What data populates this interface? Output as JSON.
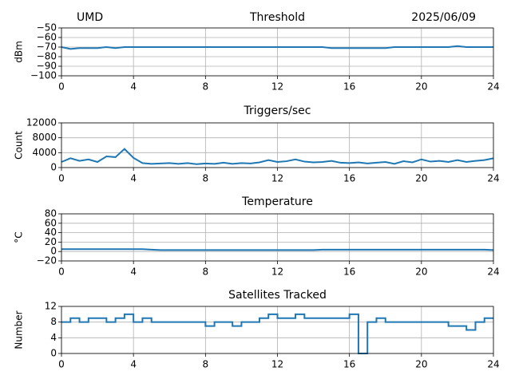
{
  "chart_data": [
    {
      "type": "line",
      "title": "Threshold",
      "annotations": [
        "UMD",
        "2025/06/09"
      ],
      "ylabel": "dBm",
      "color": "#1f77b4",
      "grid": true,
      "x": [
        0,
        0.5,
        1,
        1.5,
        2,
        2.5,
        3,
        3.5,
        4,
        4.5,
        5,
        5.5,
        6,
        6.5,
        7,
        7.5,
        8,
        8.5,
        9,
        9.5,
        10,
        10.5,
        11,
        11.5,
        12,
        12.5,
        13,
        13.5,
        14,
        14.5,
        15,
        15.5,
        16,
        16.5,
        17,
        17.5,
        18,
        18.5,
        19,
        19.5,
        20,
        20.5,
        21,
        21.5,
        22,
        22.5,
        23,
        23.5,
        24
      ],
      "values": [
        -70,
        -72,
        -71,
        -71,
        -71,
        -70,
        -71,
        -70,
        -70,
        -70,
        -70,
        -70,
        -70,
        -70,
        -70,
        -70,
        -70,
        -70,
        -70,
        -70,
        -70,
        -70,
        -70,
        -70,
        -70,
        -70,
        -70,
        -70,
        -70,
        -70,
        -71,
        -71,
        -71,
        -71,
        -71,
        -71,
        -71,
        -70,
        -70,
        -70,
        -70,
        -70,
        -70,
        -70,
        -69,
        -70,
        -70,
        -70,
        -70
      ],
      "xlim": [
        0,
        24
      ],
      "xticks": [
        0,
        4,
        8,
        12,
        16,
        20,
        24
      ],
      "ylim": [
        -100,
        -50
      ],
      "yticks": [
        {
          "value": -50,
          "label": "−50"
        },
        {
          "value": -60,
          "label": "−60"
        },
        {
          "value": -70,
          "label": "−70"
        },
        {
          "value": -80,
          "label": "−80"
        },
        {
          "value": -90,
          "label": "−90"
        },
        {
          "value": -100,
          "label": "−100"
        }
      ]
    },
    {
      "type": "line",
      "title": "Triggers/sec",
      "ylabel": "Count",
      "color": "#1f77b4",
      "grid": true,
      "x": [
        0,
        0.5,
        1,
        1.5,
        2,
        2.5,
        3,
        3.5,
        4,
        4.5,
        5,
        5.5,
        6,
        6.5,
        7,
        7.5,
        8,
        8.5,
        9,
        9.5,
        10,
        10.5,
        11,
        11.5,
        12,
        12.5,
        13,
        13.5,
        14,
        14.5,
        15,
        15.5,
        16,
        16.5,
        17,
        17.5,
        18,
        18.5,
        19,
        19.5,
        20,
        20.5,
        21,
        21.5,
        22,
        22.5,
        23,
        23.5,
        24
      ],
      "values": [
        1500,
        2500,
        1800,
        2200,
        1500,
        3000,
        2800,
        5000,
        2600,
        1200,
        1000,
        1100,
        1200,
        1000,
        1200,
        900,
        1100,
        1000,
        1300,
        1000,
        1200,
        1100,
        1400,
        2000,
        1500,
        1700,
        2200,
        1600,
        1400,
        1500,
        1800,
        1300,
        1200,
        1400,
        1100,
        1300,
        1500,
        1000,
        1700,
        1400,
        2200,
        1600,
        1800,
        1500,
        2000,
        1500,
        1800,
        2000,
        2500
      ],
      "xlim": [
        0,
        24
      ],
      "xticks": [
        0,
        4,
        8,
        12,
        16,
        20,
        24
      ],
      "ylim": [
        0,
        12000
      ],
      "yticks": [
        0,
        4000,
        8000,
        12000
      ]
    },
    {
      "type": "line",
      "title": "Temperature",
      "ylabel": "°C",
      "color": "#1f77b4",
      "grid": true,
      "x": [
        0,
        0.5,
        1,
        1.5,
        2,
        2.5,
        3,
        3.5,
        4,
        4.5,
        5,
        5.5,
        6,
        6.5,
        7,
        7.5,
        8,
        8.5,
        9,
        9.5,
        10,
        10.5,
        11,
        11.5,
        12,
        12.5,
        13,
        13.5,
        14,
        14.5,
        15,
        15.5,
        16,
        16.5,
        17,
        17.5,
        18,
        18.5,
        19,
        19.5,
        20,
        20.5,
        21,
        21.5,
        22,
        22.5,
        23,
        23.5,
        24
      ],
      "values": [
        5,
        5,
        5,
        5,
        5,
        5,
        5,
        5,
        5,
        5,
        4,
        3,
        3,
        3,
        3,
        3,
        3,
        3,
        3,
        3,
        3,
        3,
        3,
        3,
        3,
        3,
        3,
        3,
        3,
        4,
        4,
        4,
        4,
        4,
        4,
        4,
        4,
        4,
        4,
        4,
        4,
        4,
        4,
        4,
        4,
        4,
        4,
        4,
        3
      ],
      "xlim": [
        0,
        24
      ],
      "xticks": [
        0,
        4,
        8,
        12,
        16,
        20,
        24
      ],
      "ylim": [
        -20,
        80
      ],
      "yticks": [
        {
          "value": -20,
          "label": "−20"
        },
        0,
        20,
        40,
        60,
        80
      ]
    },
    {
      "type": "step",
      "title": "Satellites Tracked",
      "ylabel": "Number",
      "color": "#1f77b4",
      "grid": true,
      "x": [
        0,
        0.5,
        1,
        1.5,
        2,
        2.5,
        3,
        3.5,
        4,
        4.5,
        5,
        5.5,
        6,
        6.5,
        7,
        7.5,
        8,
        8.5,
        9,
        9.5,
        10,
        10.5,
        11,
        11.5,
        12,
        12.5,
        13,
        13.5,
        14,
        14.5,
        15,
        15.5,
        16,
        16.5,
        17,
        17.5,
        18,
        18.5,
        19,
        19.5,
        20,
        20.5,
        21,
        21.5,
        22,
        22.5,
        23,
        23.5,
        24
      ],
      "values": [
        8,
        9,
        8,
        9,
        9,
        8,
        9,
        10,
        8,
        9,
        8,
        8,
        8,
        8,
        8,
        8,
        7,
        8,
        8,
        7,
        8,
        8,
        9,
        10,
        9,
        9,
        10,
        9,
        9,
        9,
        9,
        9,
        10,
        0,
        8,
        9,
        8,
        8,
        8,
        8,
        8,
        8,
        8,
        7,
        7,
        6,
        8,
        9,
        9
      ],
      "xlim": [
        0,
        24
      ],
      "xticks": [
        0,
        4,
        8,
        12,
        16,
        20,
        24
      ],
      "ylim": [
        0,
        12
      ],
      "yticks": [
        0,
        4,
        8,
        12
      ]
    }
  ]
}
